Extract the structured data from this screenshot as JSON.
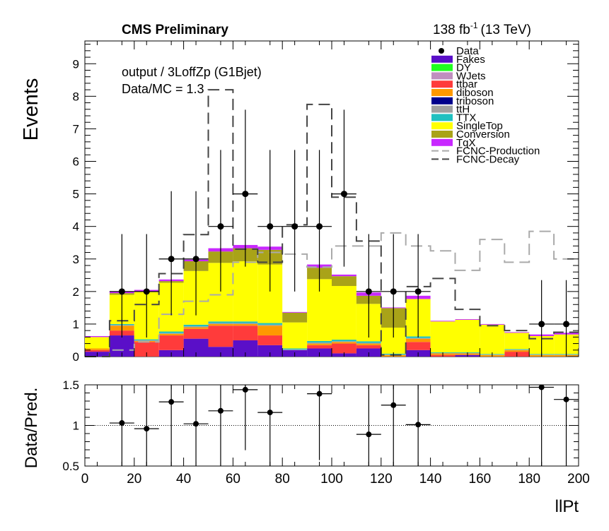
{
  "header": {
    "experiment": "CMS Preliminary",
    "lumi_value": "138 fb",
    "lumi_exp": "-1",
    "energy": "(13 TeV)"
  },
  "annotations": {
    "region": "output / 3LoffZp (G1Bjet)",
    "data_mc": "Data/MC = 1.3"
  },
  "chart_data": [
    {
      "type": "bar",
      "subtype": "stacked-histogram",
      "xlabel": "llPt",
      "ylabel": "Events",
      "xlim": [
        0,
        200
      ],
      "ylim": [
        0,
        9.7
      ],
      "x_ticks": [
        "0",
        "20",
        "40",
        "60",
        "80",
        "100",
        "120",
        "140",
        "160",
        "180",
        "200"
      ],
      "y_ticks": [
        "0",
        "1",
        "2",
        "3",
        "4",
        "5",
        "6",
        "7",
        "8",
        "9"
      ],
      "bin_edges": [
        0,
        10,
        20,
        30,
        40,
        50,
        60,
        70,
        80,
        90,
        100,
        110,
        120,
        130,
        140,
        150,
        160,
        170,
        180,
        190,
        200
      ],
      "legend_position": "top-right",
      "legend": [
        "Data",
        "Fakes",
        "DY",
        "WJets",
        "ttbar",
        "diboson",
        "triboson",
        "ttH",
        "TTX",
        "SingleTop",
        "Conversion",
        "TqX",
        "FCNC-Production",
        "FCNC-Decay"
      ],
      "stack": [
        {
          "name": "Fakes",
          "color": "#5a0fc8",
          "values": [
            0.15,
            0.65,
            0.0,
            0.2,
            0.55,
            0.3,
            0.5,
            0.35,
            0.2,
            0.25,
            0.1,
            0.25,
            0.0,
            0.2,
            0.0,
            0.05,
            0.0,
            0.0,
            0.0,
            0.0
          ]
        },
        {
          "name": "DY",
          "color": "#1fff1f",
          "values": [
            0,
            0,
            0,
            0,
            0,
            0,
            0,
            0,
            0,
            0,
            0,
            0,
            0,
            0,
            0,
            0,
            0,
            0,
            0,
            0
          ]
        },
        {
          "name": "WJets",
          "color": "#bf8fbf",
          "values": [
            0,
            0,
            0,
            0,
            0,
            0,
            0,
            0,
            0,
            0,
            0,
            0,
            0,
            0,
            0,
            0,
            0,
            0,
            0,
            0
          ]
        },
        {
          "name": "ttbar",
          "color": "#ff3b3b",
          "values": [
            0.05,
            0.15,
            0.45,
            0.45,
            0.3,
            0.65,
            0.45,
            0.3,
            0.0,
            0.1,
            0.3,
            0.1,
            0.0,
            0.25,
            0.05,
            0.0,
            0.0,
            0.15,
            0.0,
            0.0
          ]
        },
        {
          "name": "diboson",
          "color": "#ff9900",
          "values": [
            0.05,
            0.15,
            0.03,
            0.05,
            0.05,
            0.05,
            0.05,
            0.3,
            0.0,
            0.05,
            0.05,
            0.05,
            0.05,
            0.1,
            0.05,
            0.05,
            0.05,
            0.05,
            0.05,
            0.05
          ]
        },
        {
          "name": "triboson",
          "color": "#00008b",
          "values": [
            0,
            0,
            0,
            0,
            0,
            0,
            0,
            0,
            0,
            0,
            0,
            0,
            0,
            0,
            0,
            0,
            0,
            0,
            0,
            0
          ]
        },
        {
          "name": "ttH",
          "color": "#a0a0a0",
          "values": [
            0.0,
            0.02,
            0.02,
            0.02,
            0.03,
            0.03,
            0.03,
            0.03,
            0.02,
            0.03,
            0.02,
            0.02,
            0.01,
            0.02,
            0.01,
            0.01,
            0.01,
            0.01,
            0.01,
            0.01
          ]
        },
        {
          "name": "TTX",
          "color": "#20c0c0",
          "values": [
            0.0,
            0.03,
            0.03,
            0.05,
            0.05,
            0.05,
            0.05,
            0.05,
            0.03,
            0.05,
            0.05,
            0.05,
            0.03,
            0.05,
            0.02,
            0.02,
            0.02,
            0.02,
            0.02,
            0.02
          ]
        },
        {
          "name": "SingleTop",
          "color": "#ffff00",
          "values": [
            0.35,
            0.9,
            1.45,
            1.5,
            1.65,
            1.8,
            1.85,
            1.8,
            0.8,
            1.9,
            1.65,
            1.15,
            0.8,
            1.15,
            0.95,
            1.0,
            0.9,
            0.5,
            0.55,
            0.6
          ]
        },
        {
          "name": "Conversion",
          "color": "#a9a318",
          "values": [
            0.0,
            0.05,
            0.02,
            0.05,
            0.3,
            0.35,
            0.4,
            0.45,
            0.3,
            0.35,
            0.3,
            0.25,
            0.6,
            0.0,
            0.0,
            0.0,
            0.0,
            0.0,
            0.0,
            0.0
          ]
        },
        {
          "name": "TqX",
          "color": "#c828ff",
          "values": [
            0.03,
            0.05,
            0.05,
            0.05,
            0.05,
            0.1,
            0.1,
            0.1,
            0.02,
            0.1,
            0.05,
            0.1,
            0.02,
            0.1,
            0.02,
            0.02,
            0.02,
            0.02,
            0.05,
            0.05
          ]
        }
      ],
      "signals": [
        {
          "name": "FCNC-Production",
          "color": "#aaaaaa",
          "values": [
            0,
            0.2,
            0.45,
            1.3,
            1.7,
            1.9,
            2.9,
            3.2,
            3.15,
            2.75,
            3.4,
            3.4,
            3.8,
            3.4,
            3.25,
            2.65,
            3.6,
            2.9,
            3.85,
            3.0
          ]
        },
        {
          "name": "FCNC-Decay",
          "color": "#444444",
          "values": [
            0,
            1.1,
            1.6,
            2.55,
            3.75,
            8.2,
            3.3,
            2.9,
            4.05,
            7.75,
            4.9,
            3.55,
            0.05,
            2.15,
            2.4,
            1.45,
            0.95,
            0.8,
            0.55,
            0.75
          ]
        }
      ],
      "data_points": {
        "name": "Data",
        "x": [
          15,
          25,
          35,
          45,
          55,
          65,
          75,
          85,
          95,
          105,
          115,
          125,
          135,
          185,
          195
        ],
        "y": [
          2,
          2,
          3,
          3,
          4,
          5,
          4,
          4,
          4,
          5,
          2,
          2,
          2,
          1,
          1
        ]
      }
    },
    {
      "type": "scatter",
      "subtype": "ratio",
      "xlabel": "llPt",
      "ylabel": "Data/Pred.",
      "xlim": [
        0,
        200
      ],
      "ylim": [
        0.5,
        1.5
      ],
      "y_ticks": [
        "0.5",
        "1",
        "1.5"
      ],
      "reference_line": 1,
      "x": [
        15,
        25,
        35,
        45,
        55,
        65,
        75,
        95,
        115,
        125,
        135,
        185,
        195
      ],
      "y": [
        1.03,
        0.96,
        1.29,
        1.02,
        1.18,
        1.44,
        1.16,
        1.39,
        0.89,
        1.25,
        1.01,
        1.47,
        1.32
      ]
    }
  ]
}
